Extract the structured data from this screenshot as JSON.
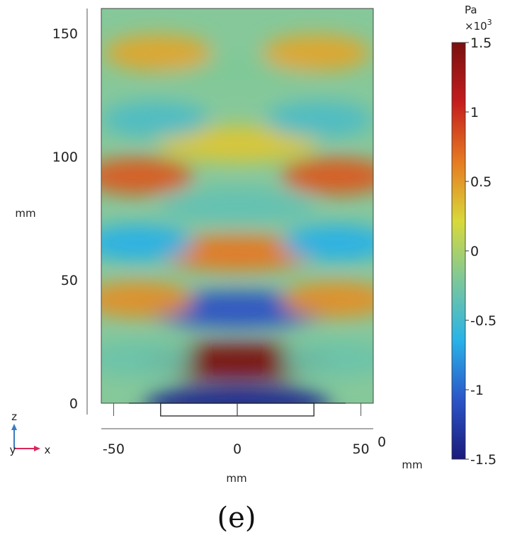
{
  "chart_data": {
    "type": "heatmap",
    "title": "",
    "caption": "(e)",
    "quantity_unit": "Pa",
    "scale_factor_label": "×10",
    "scale_factor_exponent": "3",
    "x_axis": {
      "label": "mm",
      "range": [
        -55,
        55
      ],
      "ticks": [
        -50,
        0,
        50
      ],
      "tick_labels": [
        "-50",
        "0",
        "50"
      ],
      "extra_label": "0"
    },
    "y_axis": {
      "label": "mm",
      "range": [
        -5,
        163
      ],
      "ticks": [
        0,
        50,
        100,
        150
      ],
      "tick_labels": [
        "0",
        "50",
        "100",
        "150"
      ]
    },
    "domain": {
      "x": [
        -55,
        55
      ],
      "y": [
        0,
        160
      ]
    },
    "transducer": {
      "x_range": [
        -31,
        31
      ],
      "depth_mm": 5,
      "center_line_x": 0
    },
    "colorbar": {
      "range": [
        -1.5,
        1.5
      ],
      "ticks": [
        1.5,
        1,
        0.5,
        0,
        -0.5,
        -1,
        -1.5
      ],
      "tick_labels": [
        "1.5",
        "1",
        "0.5",
        "0",
        "-0.5",
        "-1",
        "-1.5"
      ],
      "colors": [
        "#1a1a7a",
        "#2b55c8",
        "#29b3e8",
        "#7cc79a",
        "#d8d93a",
        "#e67a22",
        "#c41d1d",
        "#7a1010"
      ]
    },
    "field_lobes_kPa": [
      {
        "x": 0,
        "y": 17,
        "value": 1.5
      },
      {
        "x": 0,
        "y": 38,
        "value": -1.1
      },
      {
        "x": 0,
        "y": 61,
        "value": 0.65
      },
      {
        "x": 0,
        "y": 80,
        "value": -0.35
      },
      {
        "x": 0,
        "y": 105,
        "value": 0.3
      },
      {
        "x": 0,
        "y": 135,
        "value": -0.2
      },
      {
        "x": 0,
        "y": 0,
        "value": -1.4
      },
      {
        "x": -40,
        "y": 42,
        "value": 0.55
      },
      {
        "x": 40,
        "y": 42,
        "value": 0.55
      },
      {
        "x": -40,
        "y": 65,
        "value": -0.65
      },
      {
        "x": 40,
        "y": 65,
        "value": -0.65
      },
      {
        "x": -40,
        "y": 92,
        "value": 0.8
      },
      {
        "x": 40,
        "y": 92,
        "value": 0.8
      },
      {
        "x": -33,
        "y": 115,
        "value": -0.45
      },
      {
        "x": 33,
        "y": 115,
        "value": -0.45
      },
      {
        "x": -32,
        "y": 142,
        "value": 0.45
      },
      {
        "x": 32,
        "y": 142,
        "value": 0.45
      },
      {
        "x": -40,
        "y": 18,
        "value": -0.3
      },
      {
        "x": 40,
        "y": 18,
        "value": -0.3
      }
    ]
  },
  "triad": {
    "z_label": "z",
    "y_label": "y",
    "x_label": "x",
    "z_color": "#3a7bbf",
    "x_color": "#d8285a"
  },
  "colors": {
    "axis": "#555555",
    "frame": "#444444"
  }
}
